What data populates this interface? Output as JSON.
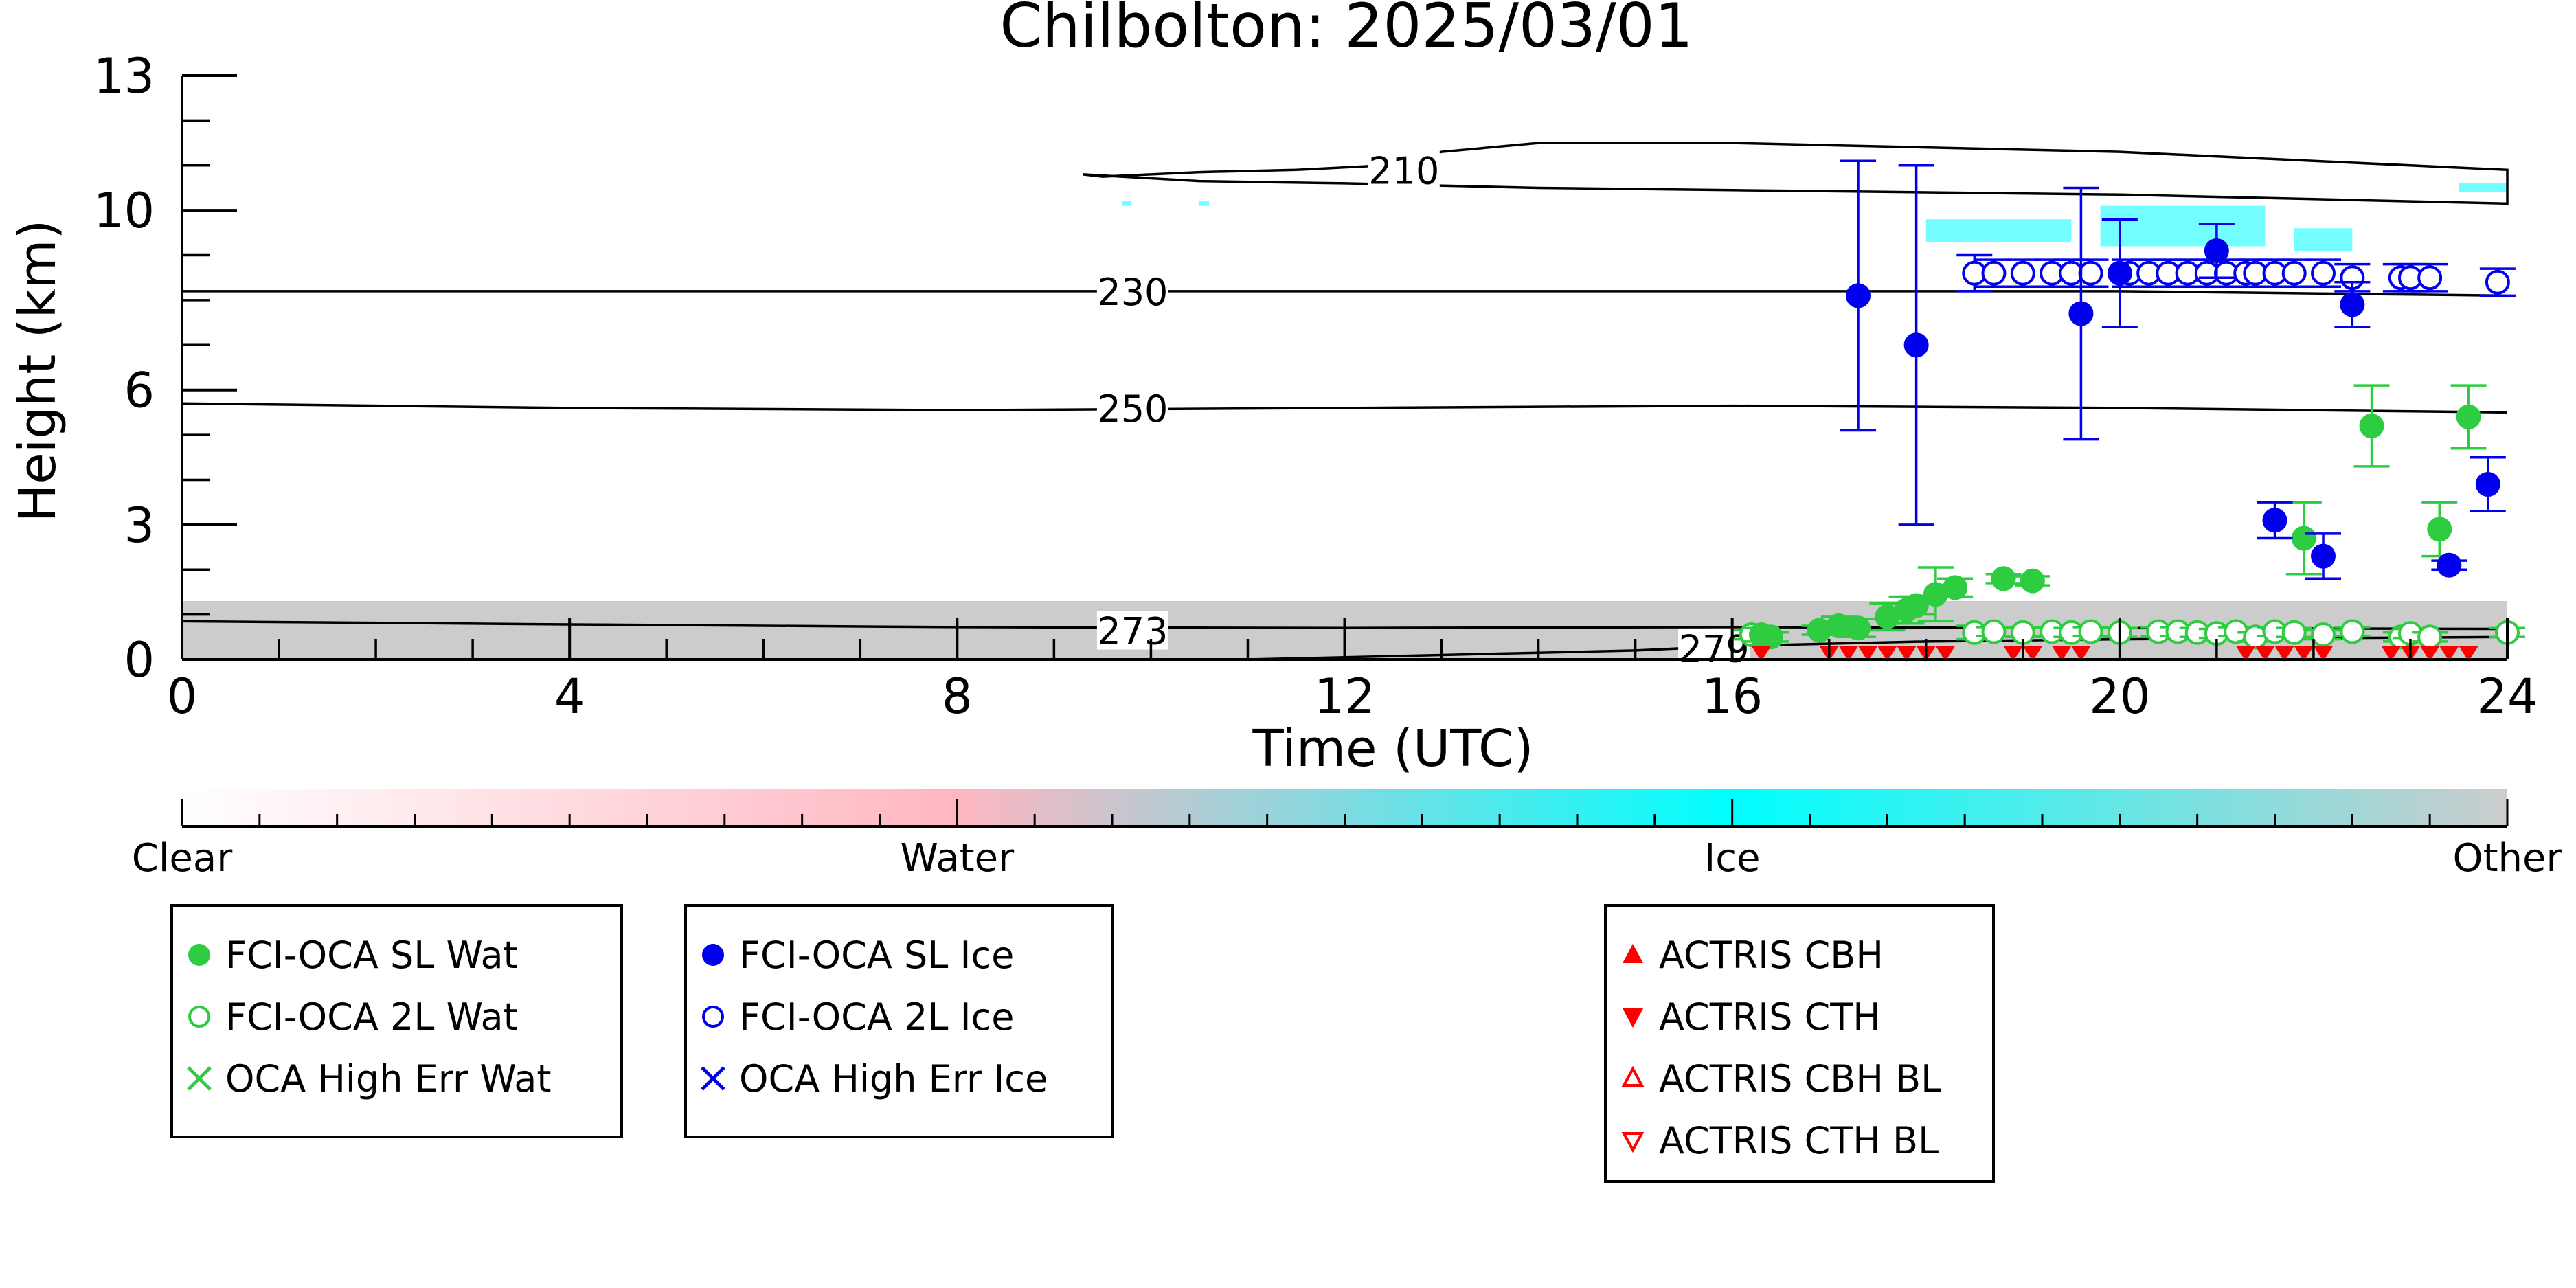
{
  "chart_data": {
    "type": "scatter",
    "title": "Chilbolton: 2025/03/01",
    "xlabel": "Time (UTC)",
    "ylabel": "Height (km)",
    "xlim": [
      0,
      24
    ],
    "ylim": [
      0,
      13
    ],
    "x_ticks": [
      0,
      4,
      8,
      12,
      16,
      20,
      24
    ],
    "y_ticks": [
      0,
      3,
      6,
      10,
      13
    ],
    "contours": [
      {
        "label": "210",
        "label_at": [
          12.3,
          10.9
        ],
        "points": [
          [
            9.3,
            10.8
          ],
          [
            9.5,
            10.75
          ],
          [
            10.5,
            10.85
          ],
          [
            11.5,
            10.9
          ],
          [
            12.4,
            11.0
          ],
          [
            13.0,
            11.3
          ],
          [
            14.0,
            11.5
          ],
          [
            16.0,
            11.5
          ],
          [
            18.0,
            11.4
          ],
          [
            20.0,
            11.3
          ],
          [
            22.0,
            11.1
          ],
          [
            24.0,
            10.9
          ]
        ],
        "lower": [
          [
            9.3,
            10.8
          ],
          [
            10.5,
            10.65
          ],
          [
            12.0,
            10.6
          ],
          [
            14.0,
            10.5
          ],
          [
            16.0,
            10.45
          ],
          [
            18.0,
            10.4
          ],
          [
            20.0,
            10.35
          ],
          [
            22.0,
            10.25
          ],
          [
            24.0,
            10.15
          ]
        ]
      },
      {
        "label": "230",
        "label_at": [
          9.5,
          8.2
        ],
        "points": [
          [
            0,
            8.2
          ],
          [
            4,
            8.2
          ],
          [
            8,
            8.2
          ],
          [
            12,
            8.2
          ],
          [
            16,
            8.2
          ],
          [
            20,
            8.2
          ],
          [
            24,
            8.1
          ]
        ]
      },
      {
        "label": "250",
        "label_at": [
          9.5,
          5.6
        ],
        "points": [
          [
            0,
            5.7
          ],
          [
            4,
            5.6
          ],
          [
            8,
            5.55
          ],
          [
            12,
            5.6
          ],
          [
            16,
            5.65
          ],
          [
            20,
            5.6
          ],
          [
            24,
            5.5
          ]
        ]
      },
      {
        "label": "273",
        "label_at": [
          9.5,
          0.65
        ],
        "points": [
          [
            0,
            0.85
          ],
          [
            4,
            0.78
          ],
          [
            8,
            0.72
          ],
          [
            12,
            0.7
          ],
          [
            16,
            0.72
          ],
          [
            20,
            0.7
          ],
          [
            24,
            0.68
          ]
        ]
      },
      {
        "label": "279",
        "label_at": [
          15.5,
          0.25
        ],
        "points": [
          [
            11,
            0.0
          ],
          [
            12,
            0.05
          ],
          [
            13,
            0.1
          ],
          [
            14,
            0.15
          ],
          [
            15,
            0.2
          ],
          [
            16,
            0.3
          ],
          [
            17,
            0.35
          ],
          [
            18,
            0.4
          ],
          [
            20,
            0.45
          ],
          [
            24,
            0.5
          ]
        ]
      }
    ],
    "sl_wat": {
      "x": [
        16.3,
        16.4,
        16.9,
        17.1,
        17.3,
        17.6,
        17.8,
        17.9,
        18.1,
        18.3,
        18.8,
        19.1,
        21.9,
        22.6,
        23.3,
        23.6
      ],
      "y": [
        0.55,
        0.5,
        0.65,
        0.75,
        0.7,
        0.95,
        1.1,
        1.2,
        1.45,
        1.6,
        1.8,
        1.75,
        2.7,
        5.2,
        2.9,
        5.4
      ],
      "err": [
        0.15,
        0.1,
        0.1,
        0.2,
        0.2,
        0.3,
        0.3,
        0.2,
        0.6,
        0.2,
        0.1,
        0.1,
        0.8,
        0.9,
        0.6,
        0.7
      ]
    },
    "l2_wat": {
      "x": [
        16.2,
        18.5,
        18.7,
        19.0,
        19.3,
        19.5,
        19.7,
        20.0,
        20.4,
        20.6,
        20.8,
        21.0,
        21.2,
        21.4,
        21.6,
        21.8,
        22.1,
        22.4,
        22.9,
        23.0,
        23.2,
        24.0
      ],
      "y": [
        0.55,
        0.6,
        0.62,
        0.6,
        0.62,
        0.6,
        0.62,
        0.6,
        0.62,
        0.62,
        0.6,
        0.58,
        0.62,
        0.5,
        0.62,
        0.6,
        0.55,
        0.62,
        0.5,
        0.58,
        0.5,
        0.6
      ],
      "err": [
        0.1,
        0.15,
        0.1,
        0.1,
        0.1,
        0.1,
        0.1,
        0.1,
        0.1,
        0.1,
        0.1,
        0.1,
        0.1,
        0.1,
        0.1,
        0.1,
        0.1,
        0.1,
        0.1,
        0.1,
        0.1,
        0.1
      ]
    },
    "sl_ice": {
      "x": [
        17.3,
        17.9,
        19.6,
        20.0,
        21.0,
        21.6,
        22.1,
        22.4,
        23.4,
        23.8
      ],
      "y": [
        8.1,
        7.0,
        7.7,
        8.6,
        9.1,
        3.1,
        2.3,
        7.9,
        2.1,
        3.9
      ],
      "err": [
        3.0,
        4.0,
        2.8,
        1.2,
        0.6,
        0.4,
        0.5,
        0.5,
        0.1,
        0.6
      ]
    },
    "l2_ice": {
      "x": [
        18.5,
        18.7,
        19.0,
        19.3,
        19.5,
        19.7,
        20.1,
        20.3,
        20.5,
        20.7,
        20.9,
        21.1,
        21.3,
        21.4,
        21.6,
        21.8,
        22.1,
        22.4,
        22.9,
        23.0,
        23.2,
        23.9
      ],
      "y": [
        8.6,
        8.6,
        8.6,
        8.6,
        8.6,
        8.6,
        8.6,
        8.6,
        8.6,
        8.6,
        8.6,
        8.6,
        8.6,
        8.6,
        8.6,
        8.6,
        8.6,
        8.5,
        8.5,
        8.5,
        8.5,
        8.4
      ],
      "err": [
        0.4,
        0.3,
        0.3,
        0.3,
        0.3,
        0.3,
        0.3,
        0.3,
        0.3,
        0.3,
        0.3,
        0.3,
        0.3,
        0.3,
        0.3,
        0.3,
        0.3,
        0.3,
        0.3,
        0.3,
        0.3,
        0.3
      ]
    },
    "actris_cth": {
      "x": [
        16.3,
        17.0,
        17.2,
        17.4,
        17.6,
        17.8,
        18.0,
        18.2,
        18.9,
        19.1,
        19.4,
        19.6,
        21.3,
        21.5,
        21.7,
        21.9,
        22.1,
        22.8,
        23.0,
        23.2,
        23.4,
        23.6
      ],
      "y": [
        0.05,
        0.05,
        0.05,
        0.05,
        0.05,
        0.05,
        0.05,
        0.05,
        0.05,
        0.05,
        0.05,
        0.05,
        0.05,
        0.05,
        0.05,
        0.05,
        0.05,
        0.05,
        0.05,
        0.05,
        0.05,
        0.05
      ]
    },
    "cloud_class": {
      "other_band": {
        "x": [
          0,
          24
        ],
        "y": [
          0,
          1.3
        ],
        "color": "#cccccc"
      },
      "ice_patches": [
        {
          "x": [
            23.5,
            24.0
          ],
          "y": [
            10.4,
            10.6
          ]
        },
        {
          "x": [
            18.0,
            19.5
          ],
          "y": [
            9.3,
            9.8
          ]
        },
        {
          "x": [
            19.8,
            21.5
          ],
          "y": [
            9.2,
            10.1
          ]
        },
        {
          "x": [
            21.8,
            22.4
          ],
          "y": [
            9.1,
            9.6
          ]
        },
        {
          "x": [
            9.7,
            9.8
          ],
          "y": [
            10.1,
            10.2
          ]
        },
        {
          "x": [
            10.5,
            10.6
          ],
          "y": [
            10.1,
            10.2
          ]
        }
      ]
    },
    "colorbar": {
      "labels": [
        "Clear",
        "Water",
        "Ice",
        "Other"
      ],
      "stops": [
        "#ffffff",
        "#ffb6c1",
        "#00ffff",
        "#cccccc"
      ]
    },
    "legends": [
      {
        "items": [
          {
            "label": "FCI-OCA SL Wat",
            "marker": "filled-circle",
            "color": "#2ecc40"
          },
          {
            "label": "FCI-OCA 2L Wat",
            "marker": "open-circle",
            "color": "#2ecc40"
          },
          {
            "label": "OCA High Err Wat",
            "marker": "x",
            "color": "#2ecc40"
          }
        ]
      },
      {
        "items": [
          {
            "label": "FCI-OCA SL Ice",
            "marker": "filled-circle",
            "color": "#0000ee"
          },
          {
            "label": "FCI-OCA 2L Ice",
            "marker": "open-circle",
            "color": "#0000ee"
          },
          {
            "label": "OCA High Err Ice",
            "marker": "x",
            "color": "#0000ee"
          }
        ]
      },
      {
        "items": [
          {
            "label": "ACTRIS CBH",
            "marker": "triangle-up",
            "color": "#ff0000"
          },
          {
            "label": "ACTRIS CTH",
            "marker": "triangle-down",
            "color": "#ff0000"
          },
          {
            "label": "ACTRIS CBH BL",
            "marker": "open-triangle-up",
            "color": "#ff0000"
          },
          {
            "label": "ACTRIS CTH BL",
            "marker": "open-triangle-down",
            "color": "#ff0000"
          }
        ]
      }
    ]
  }
}
